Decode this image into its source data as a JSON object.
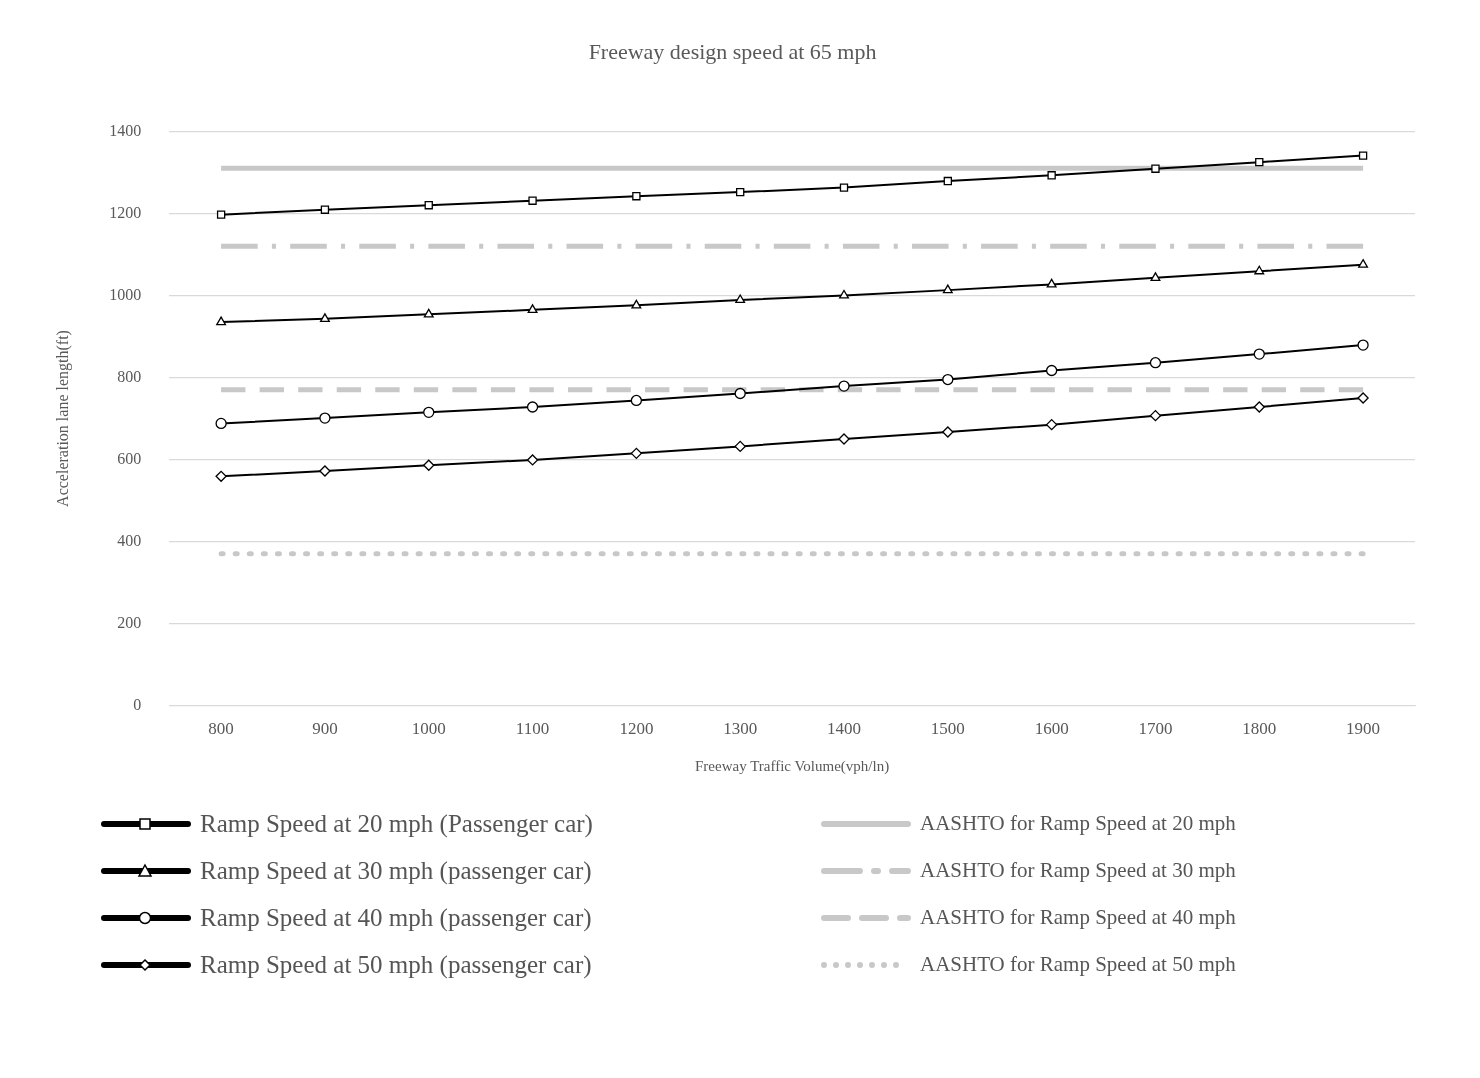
{
  "chart_data": {
    "type": "line",
    "title": "Freeway design speed at 65 mph",
    "xlabel": "Freeway Traffic Volume(vph/ln)",
    "ylabel": "Acceleration lane length(ft)",
    "categories": [
      "800",
      "900",
      "1000",
      "1100",
      "1200",
      "1300",
      "1400",
      "1500",
      "1600",
      "1700",
      "1800",
      "1900"
    ],
    "ylim": [
      0,
      1400
    ],
    "yticks": [
      0,
      200,
      400,
      600,
      800,
      1000,
      1200,
      1400
    ],
    "grid": "y",
    "legend": "bottom",
    "series": [
      {
        "name": "Ramp Speed at 20 mph (Passenger car)",
        "color": "#000000",
        "marker": "square",
        "line_style": "solid",
        "values": [
          1197,
          1209,
          1220,
          1231,
          1242,
          1252,
          1263,
          1279,
          1293,
          1309,
          1325,
          1341
        ]
      },
      {
        "name": "Ramp Speed at 30 mph (passenger car)",
        "color": "#000000",
        "marker": "triangle",
        "line_style": "solid",
        "values": [
          935,
          943,
          954,
          965,
          976,
          989,
          1000,
          1013,
          1027,
          1043,
          1059,
          1075
        ]
      },
      {
        "name": "Ramp Speed at 40 mph (passenger car)",
        "color": "#000000",
        "marker": "circle",
        "line_style": "solid",
        "values": [
          688,
          701,
          715,
          728,
          744,
          761,
          779,
          795,
          817,
          836,
          857,
          879
        ]
      },
      {
        "name": "Ramp Speed at 50 mph (passenger car)",
        "color": "#000000",
        "marker": "diamond",
        "line_style": "solid",
        "values": [
          559,
          572,
          586,
          599,
          615,
          632,
          650,
          667,
          685,
          707,
          728,
          750
        ]
      },
      {
        "name": "AASHTO for Ramp Speed at 20 mph",
        "color": "#c8c8c8",
        "marker": "none",
        "line_style": "solid",
        "values": [
          1310,
          1310,
          1310,
          1310,
          1310,
          1310,
          1310,
          1310,
          1310,
          1310,
          1310,
          1310
        ]
      },
      {
        "name": "AASHTO for Ramp Speed at 30 mph",
        "color": "#c8c8c8",
        "marker": "none",
        "line_style": "dashdot",
        "values": [
          1120,
          1120,
          1120,
          1120,
          1120,
          1120,
          1120,
          1120,
          1120,
          1120,
          1120,
          1120
        ]
      },
      {
        "name": "AASHTO for Ramp Speed at 40 mph",
        "color": "#c8c8c8",
        "marker": "none",
        "line_style": "dashed",
        "values": [
          770,
          770,
          770,
          770,
          770,
          770,
          770,
          770,
          770,
          770,
          770,
          770
        ]
      },
      {
        "name": "AASHTO for Ramp Speed at 50 mph",
        "color": "#c8c8c8",
        "marker": "none",
        "line_style": "dotted",
        "values": [
          370,
          370,
          370,
          370,
          370,
          370,
          370,
          370,
          370,
          370,
          370,
          370
        ]
      }
    ]
  }
}
